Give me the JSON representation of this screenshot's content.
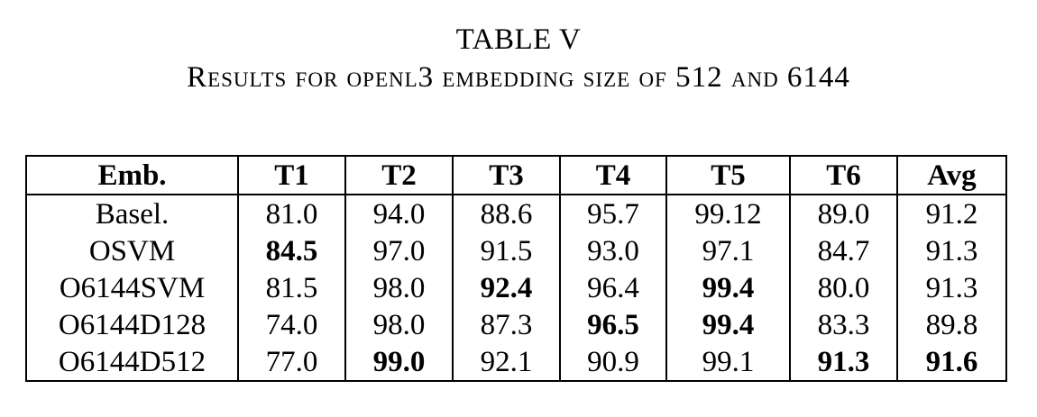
{
  "caption": {
    "title": "TABLE V",
    "subtitle": "Results for openl3 embedding size of 512 and 6144"
  },
  "table": {
    "headers": [
      "Emb.",
      "T1",
      "T2",
      "T3",
      "T4",
      "T5",
      "T6",
      "Avg"
    ],
    "rows": [
      {
        "label": "Basel.",
        "values": [
          "81.0",
          "94.0",
          "88.6",
          "95.7",
          "99.12",
          "89.0",
          "91.2"
        ],
        "bold": []
      },
      {
        "label": "OSVM",
        "values": [
          "84.5",
          "97.0",
          "91.5",
          "93.0",
          "97.1",
          "84.7",
          "91.3"
        ],
        "bold": [
          0
        ]
      },
      {
        "label": "O6144SVM",
        "values": [
          "81.5",
          "98.0",
          "92.4",
          "96.4",
          "99.4",
          "80.0",
          "91.3"
        ],
        "bold": [
          2,
          4
        ]
      },
      {
        "label": "O6144D128",
        "values": [
          "74.0",
          "98.0",
          "87.3",
          "96.5",
          "99.4",
          "83.3",
          "89.8"
        ],
        "bold": [
          3,
          4
        ]
      },
      {
        "label": "O6144D512",
        "values": [
          "77.0",
          "99.0",
          "92.1",
          "90.9",
          "99.1",
          "91.3",
          "91.6"
        ],
        "bold": [
          1,
          5,
          6
        ]
      }
    ]
  }
}
